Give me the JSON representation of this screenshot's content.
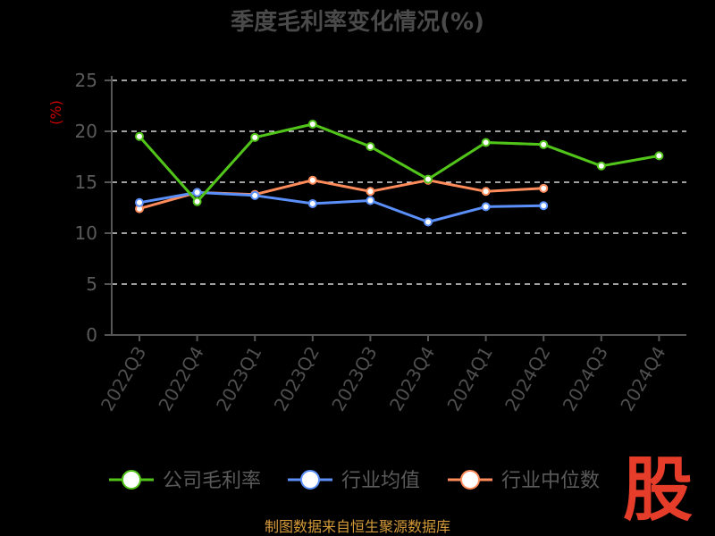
{
  "chart_data": {
    "type": "line",
    "title": "季度毛利率变化情况(%)",
    "ylabel": "(%)",
    "xlabel": "",
    "categories": [
      "2022Q3",
      "2022Q4",
      "2023Q1",
      "2023Q2",
      "2023Q3",
      "2023Q4",
      "2024Q1",
      "2024Q2",
      "2024Q3",
      "2024Q4"
    ],
    "ylim": [
      0,
      25
    ],
    "yticks": [
      0,
      5,
      10,
      15,
      20,
      25
    ],
    "grid": true,
    "legend_position": "bottom",
    "series": [
      {
        "name": "公司毛利率",
        "color": "#52c41a",
        "values": [
          19.5,
          13.1,
          19.4,
          20.7,
          18.5,
          15.3,
          18.9,
          18.7,
          16.6,
          17.6
        ]
      },
      {
        "name": "行业均值",
        "color": "#5b8ff9",
        "values": [
          13.0,
          14.0,
          13.7,
          12.9,
          13.2,
          11.1,
          12.6,
          12.7,
          null,
          null
        ]
      },
      {
        "name": "行业中位数",
        "color": "#ff8c5a",
        "values": [
          12.4,
          14.0,
          13.8,
          15.2,
          14.1,
          15.2,
          14.1,
          14.4,
          null,
          null
        ]
      }
    ]
  },
  "source_text": "制图数据来自恒生聚源数据库",
  "logo_text": "股"
}
